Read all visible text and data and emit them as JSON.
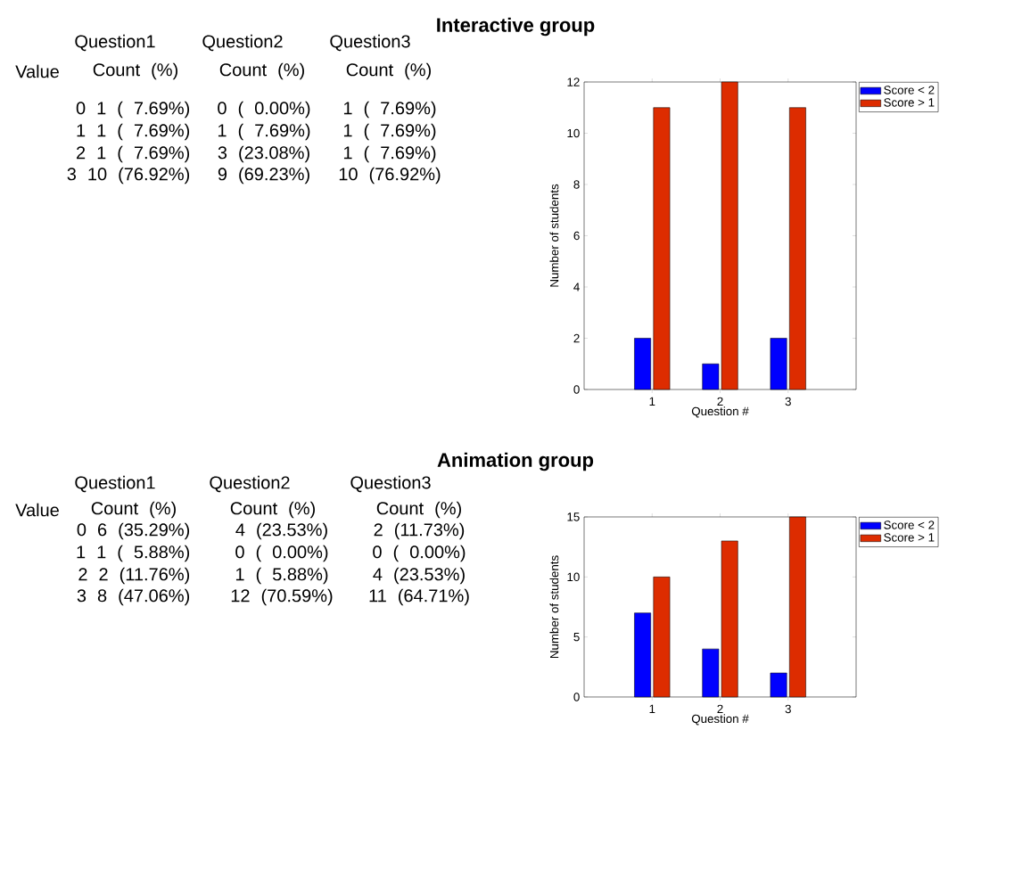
{
  "chart_data": [
    {
      "type": "other",
      "title": "Interactive group",
      "annotations": [
        "Question1",
        "Question2",
        "Question3",
        "Value",
        "Count (%)",
        "Count (%)",
        "Count (%)",
        "0   1 ( 7.69%)",
        "0 ( 0.00%)",
        "1 ( 7.69%)",
        "1   1 ( 7.69%)",
        "1 ( 7.69%)",
        "1 ( 7.69%)",
        "2   1 ( 7.69%)",
        "3 (23.08%)",
        "1 ( 7.69%)",
        "3  10 (76.92%)",
        "9 (69.23%)",
        "10 (76.92%)"
      ]
    },
    {
      "type": "bar",
      "x": [
        1,
        2,
        3
      ],
      "xlim": [
        0,
        4
      ],
      "xticks": [
        1,
        2,
        3
      ],
      "ylim": [
        0,
        12
      ],
      "yticks": [
        0,
        2,
        4,
        6,
        8,
        10,
        12
      ],
      "xlabel": "Question #",
      "ylabel": "Number of students",
      "legend": "top right",
      "series": [
        {
          "name": "Score < 2",
          "color": "#0000ff",
          "values": [
            2,
            1,
            2
          ]
        },
        {
          "name": "Score > 1",
          "color": "#dd2c00",
          "values": [
            11,
            12,
            11
          ]
        }
      ]
    },
    {
      "type": "other",
      "title": "Animation group",
      "annotations": [
        "Question1",
        "Question2",
        "Question3",
        "Value",
        "Count (%)",
        "Count (%)",
        "Count (%)",
        "0   6 (35.29%)",
        "4 (23.53%)",
        "2 (11.73%)",
        "1   1 ( 5.88%)",
        "0 ( 0.00%)",
        "0 ( 0.00%)",
        "2   2 (11.76%)",
        "1 ( 5.88%)",
        "4 (23.53%)",
        "3   8 (47.06%)",
        "12 (70.59%)",
        "11 (64.71%)"
      ]
    },
    {
      "type": "bar",
      "x": [
        1,
        2,
        3
      ],
      "xlim": [
        0,
        4
      ],
      "xticks": [
        1,
        2,
        3
      ],
      "ylim": [
        0,
        15
      ],
      "yticks": [
        0,
        5,
        10,
        15
      ],
      "xlabel": "Question #",
      "ylabel": "Number of students",
      "legend": "top right",
      "series": [
        {
          "name": "Score < 2",
          "color": "#0000ff",
          "values": [
            7,
            4,
            2
          ]
        },
        {
          "name": "Score > 1",
          "color": "#dd2c00",
          "values": [
            10,
            13,
            15
          ]
        }
      ]
    }
  ]
}
